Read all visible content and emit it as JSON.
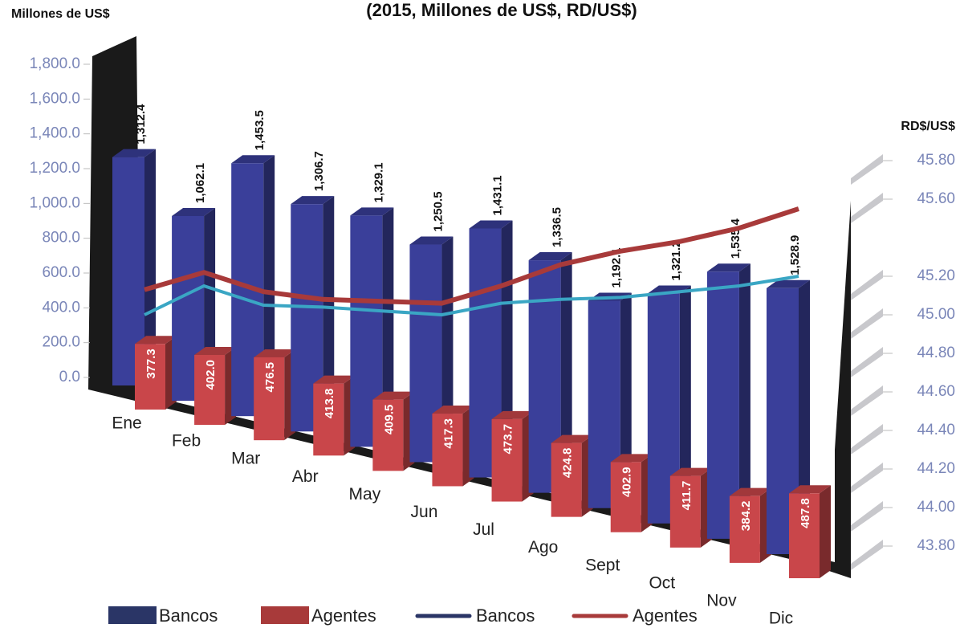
{
  "chart_data": {
    "type": "bar-line",
    "title": "(2015, Millones de US$, RD/US$)",
    "y_label": "Millones de US$",
    "y2_label": "RD$/US$",
    "categories": [
      "Ene",
      "Feb",
      "Mar",
      "Abr",
      "May",
      "Jun",
      "Jul",
      "Ago",
      "Sept",
      "Oct",
      "Nov",
      "Dic"
    ],
    "series": [
      {
        "name": "Bancos",
        "color": "#3a3f9a",
        "kind": "bar",
        "values": [
          1312.4,
          1062.1,
          1453.5,
          1306.7,
          1329.1,
          1250.5,
          1431.1,
          1336.5,
          1192.1,
          1321.2,
          1535.4,
          1528.9
        ],
        "value_labels": [
          "1,312.4",
          "1,062.1",
          "1,453.5",
          "1,306.7",
          "1,329.1",
          "1,250.5",
          "1,431.1",
          "1,336.5",
          "1,192.1",
          "1,321.2",
          "1,535.4",
          "1,528.9"
        ]
      },
      {
        "name": "Agentes",
        "color": "#c9464a",
        "kind": "bar",
        "values": [
          377.3,
          402.0,
          476.5,
          413.8,
          409.5,
          417.3,
          473.7,
          424.8,
          402.9,
          411.7,
          384.2,
          487.8
        ],
        "value_labels": [
          "377.3",
          "402.0",
          "476.5",
          "413.8",
          "409.5",
          "417.3",
          "473.7",
          "424.8",
          "402.9",
          "411.7",
          "384.2",
          "487.8"
        ]
      },
      {
        "name": "Bancos",
        "color": "#2a3566",
        "kind": "line",
        "axis": "y2",
        "values": [
          45.0,
          45.15,
          45.05,
          45.04,
          45.02,
          45.0,
          45.06,
          45.08,
          45.09,
          45.12,
          45.15,
          45.2
        ]
      },
      {
        "name": "Agentes",
        "color": "#a83a3a",
        "kind": "line",
        "axis": "y2",
        "values": [
          45.13,
          45.22,
          45.12,
          45.08,
          45.07,
          45.06,
          45.15,
          45.26,
          45.33,
          45.38,
          45.45,
          45.55
        ]
      }
    ],
    "ylim": [
      0,
      1800
    ],
    "yticks": [
      {
        "value": 0,
        "label": "0.0"
      },
      {
        "value": 200,
        "label": "200.0"
      },
      {
        "value": 400,
        "label": "400.0"
      },
      {
        "value": 600,
        "label": "600.0"
      },
      {
        "value": 800,
        "label": "800.0"
      },
      {
        "value": 1000,
        "label": "1,000.0"
      },
      {
        "value": 1200,
        "label": "1,200.0"
      },
      {
        "value": 1400,
        "label": "1,400.0"
      },
      {
        "value": 1600,
        "label": "1,600.0"
      },
      {
        "value": 1800,
        "label": "1,800.0"
      }
    ],
    "y2lim": [
      43.8,
      45.8
    ],
    "y2ticks": [
      {
        "value": 45.8,
        "label": "45.80"
      },
      {
        "value": 45.6,
        "label": "45.60"
      },
      {
        "value": 45.2,
        "label": "45.20"
      },
      {
        "value": 45.0,
        "label": "45.00"
      },
      {
        "value": 44.8,
        "label": "44.80"
      },
      {
        "value": 44.6,
        "label": "44.60"
      },
      {
        "value": 44.4,
        "label": "44.40"
      },
      {
        "value": 44.2,
        "label": "44.20"
      },
      {
        "value": 44.0,
        "label": "44.00"
      },
      {
        "value": 43.8,
        "label": "43.80"
      }
    ]
  }
}
